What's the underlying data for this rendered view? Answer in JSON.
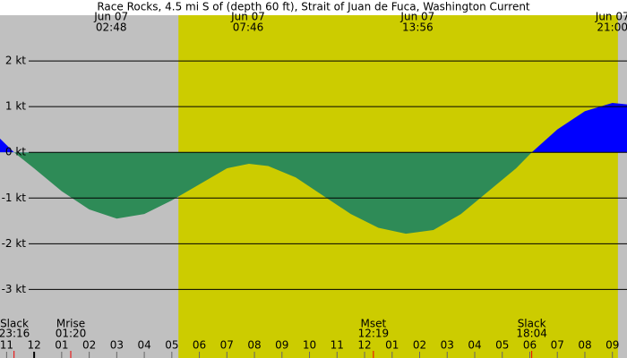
{
  "chart_data": {
    "type": "area",
    "title": "Race Rocks, 4.5 mi S of (depth 60 ft), Strait of Juan de Fuca, Washington Current",
    "x": [
      -1.24,
      -0.73,
      0,
      1,
      2,
      3,
      4,
      5,
      6,
      7,
      7.8,
      8.5,
      9.5,
      10.5,
      11.5,
      12.5,
      13.5,
      14.5,
      15.5,
      16.5,
      17.5,
      18.07,
      19,
      20,
      21,
      21.53
    ],
    "values": [
      0.3,
      0,
      -0.35,
      -0.85,
      -1.25,
      -1.45,
      -1.35,
      -1.05,
      -0.7,
      -0.35,
      -0.25,
      -0.3,
      -0.55,
      -0.95,
      -1.35,
      -1.65,
      -1.78,
      -1.7,
      -1.35,
      -0.85,
      -0.35,
      0,
      0.5,
      0.9,
      1.08,
      1.05
    ],
    "positive_color": "#0000ff",
    "negative_color": "#2e8b57",
    "night_color": "#c0c0c0",
    "day_color": "#cccc00",
    "daylight": [
      5.24,
      21.2
    ],
    "xlim": [
      -1.24,
      21.53
    ],
    "ylim": [
      -4.5,
      3
    ],
    "yticks": [
      {
        "value": 2,
        "label": "2 kt"
      },
      {
        "value": 1,
        "label": "1 kt"
      },
      {
        "value": 0,
        "label": "0 kt"
      },
      {
        "value": -1,
        "label": "-1 kt"
      },
      {
        "value": -2,
        "label": "-2 kt"
      },
      {
        "value": -3,
        "label": "-3 kt"
      }
    ],
    "xticks": [
      {
        "value": -1,
        "label": "11"
      },
      {
        "value": 0,
        "label": "12"
      },
      {
        "value": 1,
        "label": "01"
      },
      {
        "value": 2,
        "label": "02"
      },
      {
        "value": 3,
        "label": "03"
      },
      {
        "value": 4,
        "label": "04"
      },
      {
        "value": 5,
        "label": "05"
      },
      {
        "value": 6,
        "label": "06"
      },
      {
        "value": 7,
        "label": "07"
      },
      {
        "value": 8,
        "label": "08"
      },
      {
        "value": 9,
        "label": "09"
      },
      {
        "value": 10,
        "label": "10"
      },
      {
        "value": 11,
        "label": "11"
      },
      {
        "value": 12,
        "label": "12"
      },
      {
        "value": 13,
        "label": "01"
      },
      {
        "value": 14,
        "label": "02"
      },
      {
        "value": 15,
        "label": "03"
      },
      {
        "value": 16,
        "label": "04"
      },
      {
        "value": 17,
        "label": "05"
      },
      {
        "value": 18,
        "label": "06"
      },
      {
        "value": 19,
        "label": "07"
      },
      {
        "value": 20,
        "label": "08"
      },
      {
        "value": 21,
        "label": "09"
      }
    ],
    "top_labels": [
      {
        "x": 2.8,
        "date": "Jun 07",
        "time": "02:48"
      },
      {
        "x": 7.77,
        "date": "Jun 07",
        "time": "07:46"
      },
      {
        "x": 13.93,
        "date": "Jun 07",
        "time": "13:56"
      },
      {
        "x": 21,
        "date": "Jun 07",
        "time": "21:00"
      }
    ],
    "events": [
      {
        "x": -0.73,
        "name": "Slack",
        "time": "23:16"
      },
      {
        "x": 1.33,
        "name": "Mrise",
        "time": "01:20"
      },
      {
        "x": 12.32,
        "name": "Mset",
        "time": "12:19"
      },
      {
        "x": 18.07,
        "name": "Slack",
        "time": "18:04"
      }
    ]
  }
}
